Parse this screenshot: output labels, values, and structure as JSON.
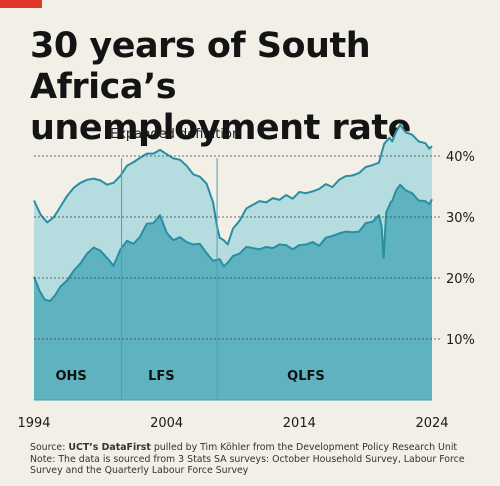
{
  "title_line1": "30 years of South Africa’s",
  "title_line2": "unemployment rate",
  "annotation": "Expanded definition",
  "source": {
    "prefix": "Source: ",
    "org": "UCT’s DataFirst",
    "text": " pulled by Tim Köhler from the Development Policy Research Unit",
    "note1": "Note: The data is sourced from 3 Stats SA surveys: October Household Survey, Labour Force",
    "note2": "Survey and the Quarterly Labour Force Survey"
  },
  "colors": {
    "expanded_fill": "#b5dcdf",
    "official_fill": "#5fb3c0",
    "line": "#2a8ea2",
    "grid": "#444444",
    "divider": "#4aa3b3",
    "accent": "#e0362c"
  },
  "chart_data": {
    "type": "area",
    "xlim": [
      1994,
      2024
    ],
    "ylim": [
      0,
      44
    ],
    "x_ticks": [
      {
        "value": 1994,
        "label": "1994"
      },
      {
        "value": 2004,
        "label": "2004"
      },
      {
        "value": 2014,
        "label": "2014"
      },
      {
        "value": 2024,
        "label": "2024"
      }
    ],
    "y_ticks": [
      {
        "value": 10,
        "label": "10%"
      },
      {
        "value": 20,
        "label": "20%"
      },
      {
        "value": 30,
        "label": "30%"
      },
      {
        "value": 40,
        "label": "40%"
      }
    ],
    "grid": "horizontal dashed",
    "survey_periods": [
      {
        "label": "OHS",
        "start": 1994,
        "end": 2000.6
      },
      {
        "label": "LFS",
        "start": 2000.6,
        "end": 2007.8
      },
      {
        "label": "QLFS",
        "start": 2007.8,
        "end": 2024
      }
    ],
    "series": [
      {
        "name": "Expanded definition",
        "points": [
          [
            1994,
            32.7
          ],
          [
            1994.5,
            30.4
          ],
          [
            1995,
            29.1
          ],
          [
            1995.5,
            30.0
          ],
          [
            1996,
            31.7
          ],
          [
            1996.5,
            33.5
          ],
          [
            1997,
            34.8
          ],
          [
            1997.5,
            35.6
          ],
          [
            1998,
            36.1
          ],
          [
            1998.5,
            36.3
          ],
          [
            1999,
            36.0
          ],
          [
            1999.5,
            35.3
          ],
          [
            2000,
            35.6
          ],
          [
            2000.5,
            36.7
          ],
          [
            2001,
            38.4
          ],
          [
            2001.5,
            39.0
          ],
          [
            2002,
            39.7
          ],
          [
            2002.5,
            40.4
          ],
          [
            2003,
            40.4
          ],
          [
            2003.5,
            41.0
          ],
          [
            2004,
            40.3
          ],
          [
            2004.5,
            39.6
          ],
          [
            2005,
            39.4
          ],
          [
            2005.5,
            38.4
          ],
          [
            2006,
            37.0
          ],
          [
            2006.5,
            36.6
          ],
          [
            2007,
            35.5
          ],
          [
            2007.5,
            32.4
          ],
          [
            2007.8,
            28.4
          ],
          [
            2008,
            26.6
          ],
          [
            2008.3,
            26.2
          ],
          [
            2008.6,
            25.5
          ],
          [
            2009,
            28.1
          ],
          [
            2009.5,
            29.4
          ],
          [
            2010,
            31.4
          ],
          [
            2010.5,
            32.0
          ],
          [
            2011,
            32.6
          ],
          [
            2011.5,
            32.4
          ],
          [
            2012,
            33.1
          ],
          [
            2012.5,
            32.8
          ],
          [
            2013,
            33.6
          ],
          [
            2013.5,
            33.0
          ],
          [
            2014,
            34.1
          ],
          [
            2014.5,
            33.9
          ],
          [
            2015,
            34.2
          ],
          [
            2015.5,
            34.6
          ],
          [
            2016,
            35.4
          ],
          [
            2016.5,
            34.9
          ],
          [
            2017,
            36.1
          ],
          [
            2017.5,
            36.7
          ],
          [
            2018,
            36.8
          ],
          [
            2018.5,
            37.2
          ],
          [
            2019,
            38.2
          ],
          [
            2019.5,
            38.5
          ],
          [
            2020,
            38.9
          ],
          [
            2020.4,
            42.0
          ],
          [
            2020.8,
            43.0
          ],
          [
            2021,
            42.4
          ],
          [
            2021.3,
            44.0
          ],
          [
            2021.6,
            45.1
          ],
          [
            2022,
            43.9
          ],
          [
            2022.5,
            43.5
          ],
          [
            2023,
            42.4
          ],
          [
            2023.5,
            42.1
          ],
          [
            2023.8,
            41.2
          ],
          [
            2024,
            41.6
          ]
        ]
      },
      {
        "name": "",
        "points": [
          [
            1994,
            20.2
          ],
          [
            1994.4,
            18.0
          ],
          [
            1994.8,
            16.5
          ],
          [
            1995.2,
            16.2
          ],
          [
            1995.6,
            17.2
          ],
          [
            1996,
            18.6
          ],
          [
            1996.5,
            19.6
          ],
          [
            1997,
            21.2
          ],
          [
            1997.5,
            22.4
          ],
          [
            1998,
            24.0
          ],
          [
            1998.5,
            25.0
          ],
          [
            1999,
            24.5
          ],
          [
            1999.5,
            23.3
          ],
          [
            2000,
            22.0
          ],
          [
            2000.5,
            24.6
          ],
          [
            2001,
            26.1
          ],
          [
            2001.5,
            25.6
          ],
          [
            2002,
            26.8
          ],
          [
            2002.5,
            28.9
          ],
          [
            2003,
            29.0
          ],
          [
            2003.5,
            30.3
          ],
          [
            2004,
            27.4
          ],
          [
            2004.5,
            26.2
          ],
          [
            2005,
            26.7
          ],
          [
            2005.5,
            25.9
          ],
          [
            2006,
            25.5
          ],
          [
            2006.5,
            25.6
          ],
          [
            2007,
            24.1
          ],
          [
            2007.5,
            22.8
          ],
          [
            2008,
            23.1
          ],
          [
            2008.3,
            21.9
          ],
          [
            2008.6,
            22.5
          ],
          [
            2009,
            23.6
          ],
          [
            2009.5,
            24.0
          ],
          [
            2010,
            25.1
          ],
          [
            2010.5,
            24.9
          ],
          [
            2011,
            24.7
          ],
          [
            2011.5,
            25.1
          ],
          [
            2012,
            24.9
          ],
          [
            2012.5,
            25.5
          ],
          [
            2013,
            25.4
          ],
          [
            2013.5,
            24.7
          ],
          [
            2014,
            25.4
          ],
          [
            2014.5,
            25.5
          ],
          [
            2015,
            25.9
          ],
          [
            2015.5,
            25.3
          ],
          [
            2016,
            26.6
          ],
          [
            2016.5,
            26.9
          ],
          [
            2017,
            27.3
          ],
          [
            2017.5,
            27.6
          ],
          [
            2018,
            27.5
          ],
          [
            2018.5,
            27.6
          ],
          [
            2019,
            29.0
          ],
          [
            2019.5,
            29.2
          ],
          [
            2020,
            30.3
          ],
          [
            2020.2,
            28.5
          ],
          [
            2020.35,
            23.3
          ],
          [
            2020.55,
            30.7
          ],
          [
            2020.9,
            32.5
          ],
          [
            2021,
            32.6
          ],
          [
            2021.3,
            34.4
          ],
          [
            2021.6,
            35.3
          ],
          [
            2022,
            34.4
          ],
          [
            2022.5,
            33.9
          ],
          [
            2023,
            32.7
          ],
          [
            2023.5,
            32.6
          ],
          [
            2023.8,
            32.1
          ],
          [
            2024,
            32.9
          ]
        ]
      }
    ]
  }
}
